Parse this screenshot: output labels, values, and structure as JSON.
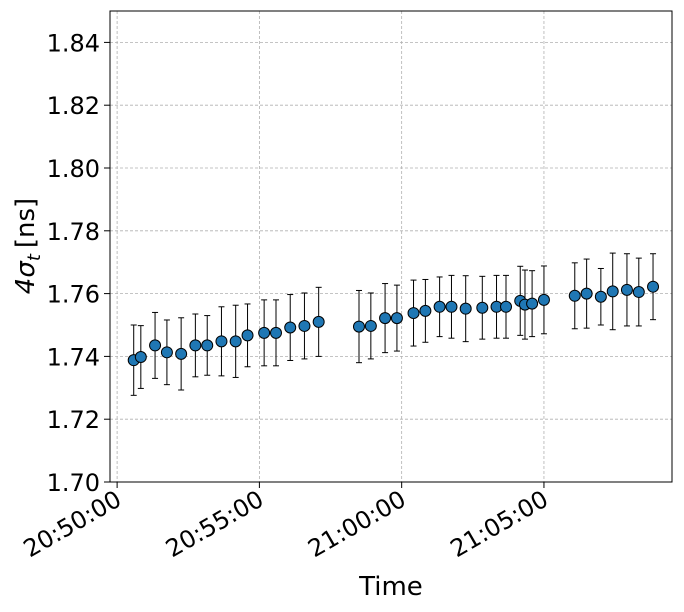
{
  "chart_data": {
    "type": "scatter",
    "xlabel": "Time",
    "ylabel_main": "4σ",
    "ylabel_sub": "t",
    "ylabel_unit": "[ns]",
    "ylim": [
      1.7,
      1.85
    ],
    "yticks": [
      1.7,
      1.72,
      1.74,
      1.76,
      1.78,
      1.8,
      1.82,
      1.84
    ],
    "ytick_labels": [
      "1.70",
      "1.72",
      "1.74",
      "1.76",
      "1.78",
      "1.80",
      "1.82",
      "1.84"
    ],
    "xlim": [
      "20:49:45",
      "21:09:30"
    ],
    "xticks": [
      "20:50:00",
      "20:55:00",
      "21:00:00",
      "21:05:00"
    ],
    "grid": true,
    "marker_color": "#1f77b4",
    "marker_edge": "#000000",
    "points": [
      {
        "x": "20:50:35",
        "y": 1.7388,
        "err": 0.0112
      },
      {
        "x": "20:50:50",
        "y": 1.7398,
        "err": 0.01
      },
      {
        "x": "20:51:20",
        "y": 1.7435,
        "err": 0.0105
      },
      {
        "x": "20:51:45",
        "y": 1.7413,
        "err": 0.0103
      },
      {
        "x": "20:52:15",
        "y": 1.7408,
        "err": 0.0115
      },
      {
        "x": "20:52:45",
        "y": 1.7435,
        "err": 0.01
      },
      {
        "x": "20:53:10",
        "y": 1.7435,
        "err": 0.0095
      },
      {
        "x": "20:53:40",
        "y": 1.7448,
        "err": 0.011
      },
      {
        "x": "20:54:10",
        "y": 1.7448,
        "err": 0.0115
      },
      {
        "x": "20:54:35",
        "y": 1.7467,
        "err": 0.01
      },
      {
        "x": "20:55:10",
        "y": 1.7475,
        "err": 0.0105
      },
      {
        "x": "20:55:35",
        "y": 1.7475,
        "err": 0.0105
      },
      {
        "x": "20:56:05",
        "y": 1.7492,
        "err": 0.0105
      },
      {
        "x": "20:56:35",
        "y": 1.7497,
        "err": 0.0105
      },
      {
        "x": "20:57:05",
        "y": 1.751,
        "err": 0.011
      },
      {
        "x": "20:58:30",
        "y": 1.7495,
        "err": 0.0115
      },
      {
        "x": "20:58:55",
        "y": 1.7497,
        "err": 0.0105
      },
      {
        "x": "20:59:25",
        "y": 1.7522,
        "err": 0.011
      },
      {
        "x": "20:59:50",
        "y": 1.7522,
        "err": 0.0105
      },
      {
        "x": "21:00:25",
        "y": 1.7538,
        "err": 0.0105
      },
      {
        "x": "21:00:50",
        "y": 1.7545,
        "err": 0.01
      },
      {
        "x": "21:01:20",
        "y": 1.7558,
        "err": 0.0095
      },
      {
        "x": "21:01:45",
        "y": 1.7558,
        "err": 0.01
      },
      {
        "x": "21:02:15",
        "y": 1.7552,
        "err": 0.0105
      },
      {
        "x": "21:02:50",
        "y": 1.7555,
        "err": 0.01
      },
      {
        "x": "21:03:20",
        "y": 1.7558,
        "err": 0.01
      },
      {
        "x": "21:03:40",
        "y": 1.7558,
        "err": 0.01
      },
      {
        "x": "21:04:10",
        "y": 1.7577,
        "err": 0.011
      },
      {
        "x": "21:04:20",
        "y": 1.7565,
        "err": 0.011
      },
      {
        "x": "21:04:35",
        "y": 1.7568,
        "err": 0.0105
      },
      {
        "x": "21:05:00",
        "y": 1.758,
        "err": 0.0108
      },
      {
        "x": "21:06:05",
        "y": 1.7593,
        "err": 0.0105
      },
      {
        "x": "21:06:30",
        "y": 1.76,
        "err": 0.011
      },
      {
        "x": "21:07:00",
        "y": 1.759,
        "err": 0.009
      },
      {
        "x": "21:07:25",
        "y": 1.7607,
        "err": 0.0122
      },
      {
        "x": "21:07:55",
        "y": 1.7612,
        "err": 0.0115
      },
      {
        "x": "21:08:20",
        "y": 1.7605,
        "err": 0.0108
      },
      {
        "x": "21:08:50",
        "y": 1.7622,
        "err": 0.0105
      }
    ]
  }
}
